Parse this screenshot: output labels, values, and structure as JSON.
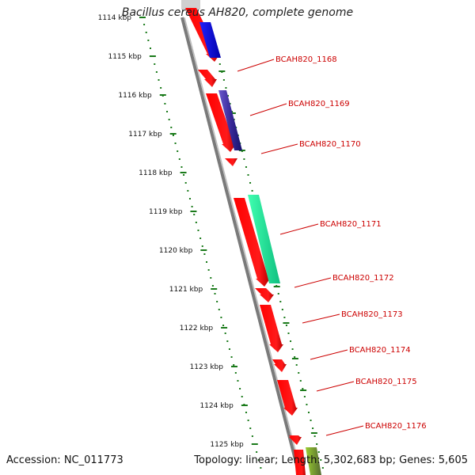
{
  "title": "Bacillus cereus AH820, complete genome",
  "footer": {
    "accession": "Accession: NC_011773",
    "summary": "Topology: linear; Length: 5,302,683 bp; Genes: 5,605"
  },
  "colors": {
    "forward_gene": "#ff0000",
    "reverse_tick": "#1a7a1a",
    "label": "#cc0000",
    "backbone": "#888888"
  },
  "scale": {
    "unit": "kbp",
    "ticks": [
      "1114 kbp",
      "1115 kbp",
      "1116 kbp",
      "1117 kbp",
      "1118 kbp",
      "1119 kbp",
      "1120 kbp",
      "1121 kbp",
      "1122 kbp",
      "1123 kbp",
      "1124 kbp",
      "1125 kbp"
    ]
  },
  "genes": [
    {
      "label": "BCAH820_1168",
      "color": "blue"
    },
    {
      "label": "BCAH820_1169",
      "color": "navy"
    },
    {
      "label": "BCAH820_1170",
      "color": "red"
    },
    {
      "label": "BCAH820_1171",
      "color": "mediumspringgreen"
    },
    {
      "label": "BCAH820_1172",
      "color": "red"
    },
    {
      "label": "BCAH820_1173",
      "color": "red"
    },
    {
      "label": "BCAH820_1174",
      "color": "red"
    },
    {
      "label": "BCAH820_1175",
      "color": "red"
    },
    {
      "label": "BCAH820_1176",
      "color": "olive"
    }
  ]
}
